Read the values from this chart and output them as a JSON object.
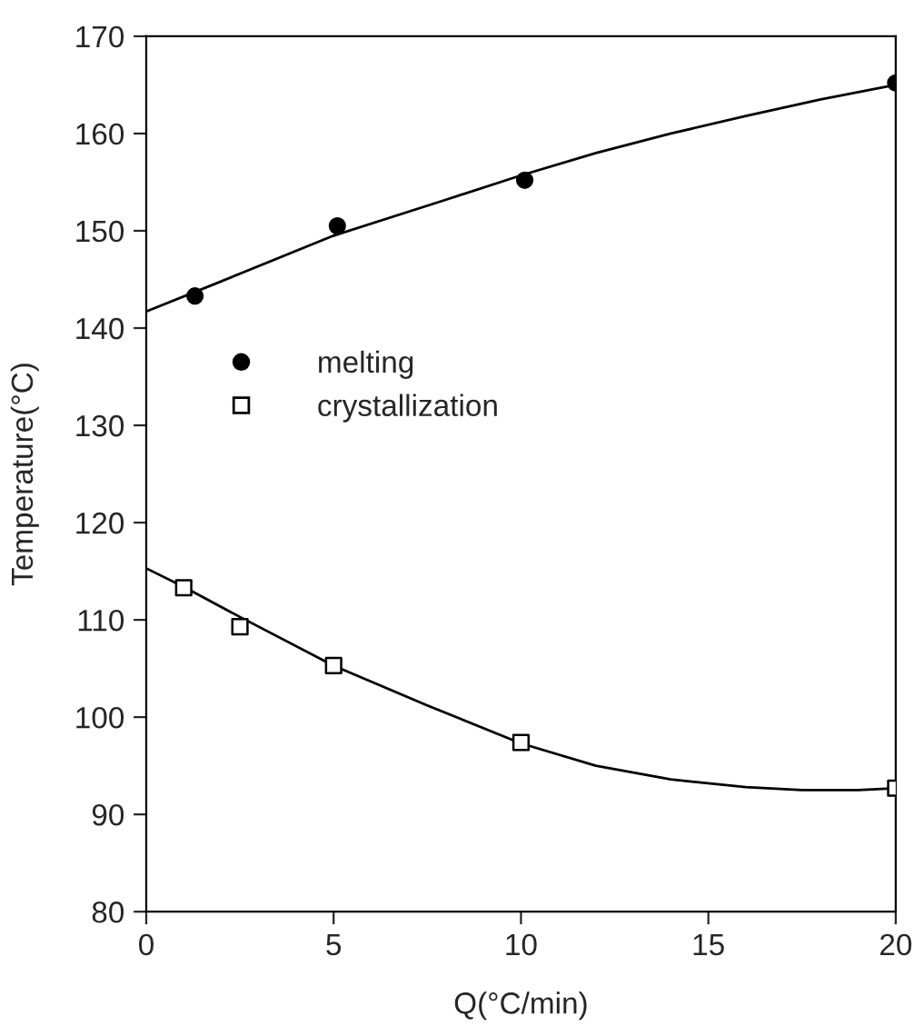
{
  "chart_data": {
    "type": "scatter",
    "xlabel": "Q(°C/min)",
    "ylabel": "Temperature(°C)",
    "xlim": [
      0,
      20
    ],
    "xticks": [
      0,
      5,
      10,
      15,
      20
    ],
    "ylim": [
      80,
      170
    ],
    "yticks": [
      80,
      90,
      100,
      110,
      120,
      130,
      140,
      150,
      160,
      170
    ],
    "grid": false,
    "legend": "left",
    "series": [
      {
        "name": "melting",
        "marker": "circle",
        "color": "#000000",
        "x": [
          1.3,
          5.1,
          10.1,
          20
        ],
        "values": [
          143.3,
          150.5,
          155.2,
          165.2
        ]
      },
      {
        "name": "crystallization",
        "marker": "square",
        "color": "#000000",
        "x": [
          1,
          2.5,
          5,
          10,
          20
        ],
        "values": [
          113.3,
          109.3,
          105.3,
          97.4,
          92.7
        ]
      },
      {
        "type": "line",
        "marker": "none",
        "line_style": "solid",
        "color": "#000000",
        "x": [
          0,
          2,
          5,
          8,
          10,
          12,
          14,
          16,
          18,
          20
        ],
        "values": [
          141.7,
          144.8,
          149.5,
          153.2,
          155.7,
          158,
          160,
          161.8,
          163.5,
          165
        ]
      },
      {
        "type": "line",
        "marker": "none",
        "line_style": "solid",
        "color": "#000000",
        "x": [
          0,
          1,
          2.5,
          5,
          7.5,
          10,
          12,
          14,
          16,
          17.5,
          19,
          20
        ],
        "values": [
          115.3,
          113.4,
          110.3,
          105.3,
          101.2,
          97.3,
          95,
          93.6,
          92.8,
          92.5,
          92.5,
          92.7
        ]
      }
    ]
  }
}
